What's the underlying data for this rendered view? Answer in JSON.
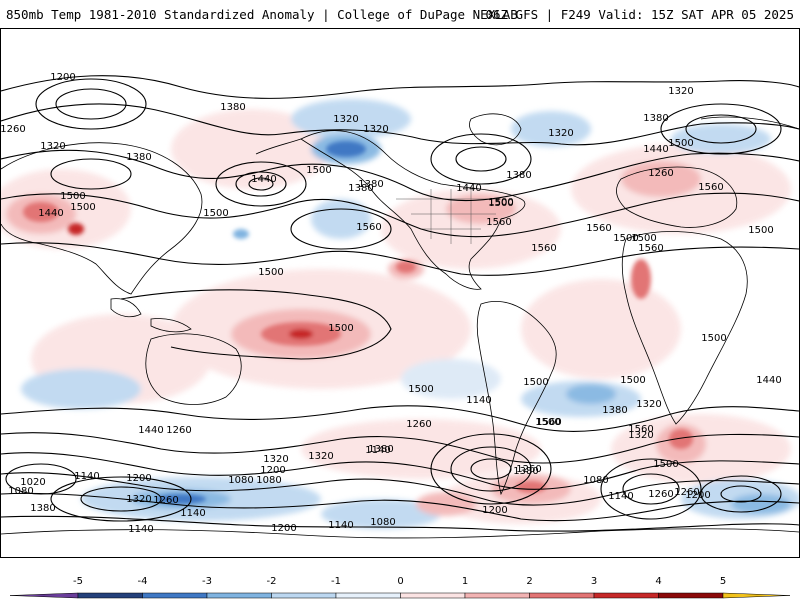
{
  "header": {
    "title": "850mb Temp 1981-2010 Standardized Anomaly | College of DuPage NEXLAB",
    "run_info": "06Z GFS | F249 Valid: 15Z SAT APR 05 2025"
  },
  "colorbar": {
    "ticks": [
      "-5",
      "-4",
      "-3",
      "-2",
      "-1",
      "0",
      "1",
      "2",
      "3",
      "4",
      "5"
    ],
    "colors": [
      "#6a3d9a",
      "#24407a",
      "#3f78c4",
      "#7fb3e0",
      "#bcd7f0",
      "#e6f0fa",
      "#fbe3e3",
      "#f2b3b3",
      "#e27474",
      "#c62828",
      "#8b0a0a",
      "#f2c21b"
    ]
  },
  "contours": {
    "labels": [
      "1200",
      "1260",
      "1320",
      "1380",
      "1380",
      "1320",
      "1320",
      "1320",
      "1260",
      "1500",
      "1440",
      "1500",
      "1500",
      "1560",
      "1380",
      "1440",
      "1500",
      "1380",
      "1560",
      "1560",
      "1380",
      "1500",
      "1440",
      "1500",
      "1560",
      "1500",
      "1560",
      "1500",
      "1500",
      "1500",
      "1500",
      "1500",
      "1560",
      "1440",
      "1380",
      "1320",
      "1500",
      "1500",
      "1560",
      "1380",
      "1260",
      "1140",
      "1320",
      "1440",
      "1200",
      "1080",
      "1260",
      "1320",
      "1020",
      "1140",
      "1080",
      "1140",
      "1080",
      "1200",
      "1380",
      "1320",
      "1260",
      "1140",
      "1200",
      "1140",
      "1080",
      "1200",
      "1260",
      "1500",
      "1500",
      "1140",
      "1380",
      "1260",
      "1320",
      "1440",
      "1500",
      "1320",
      "1380",
      "1200",
      "1080",
      "1140",
      "1260",
      "1560",
      "1500"
    ]
  },
  "map": {
    "projection_note": ""
  }
}
